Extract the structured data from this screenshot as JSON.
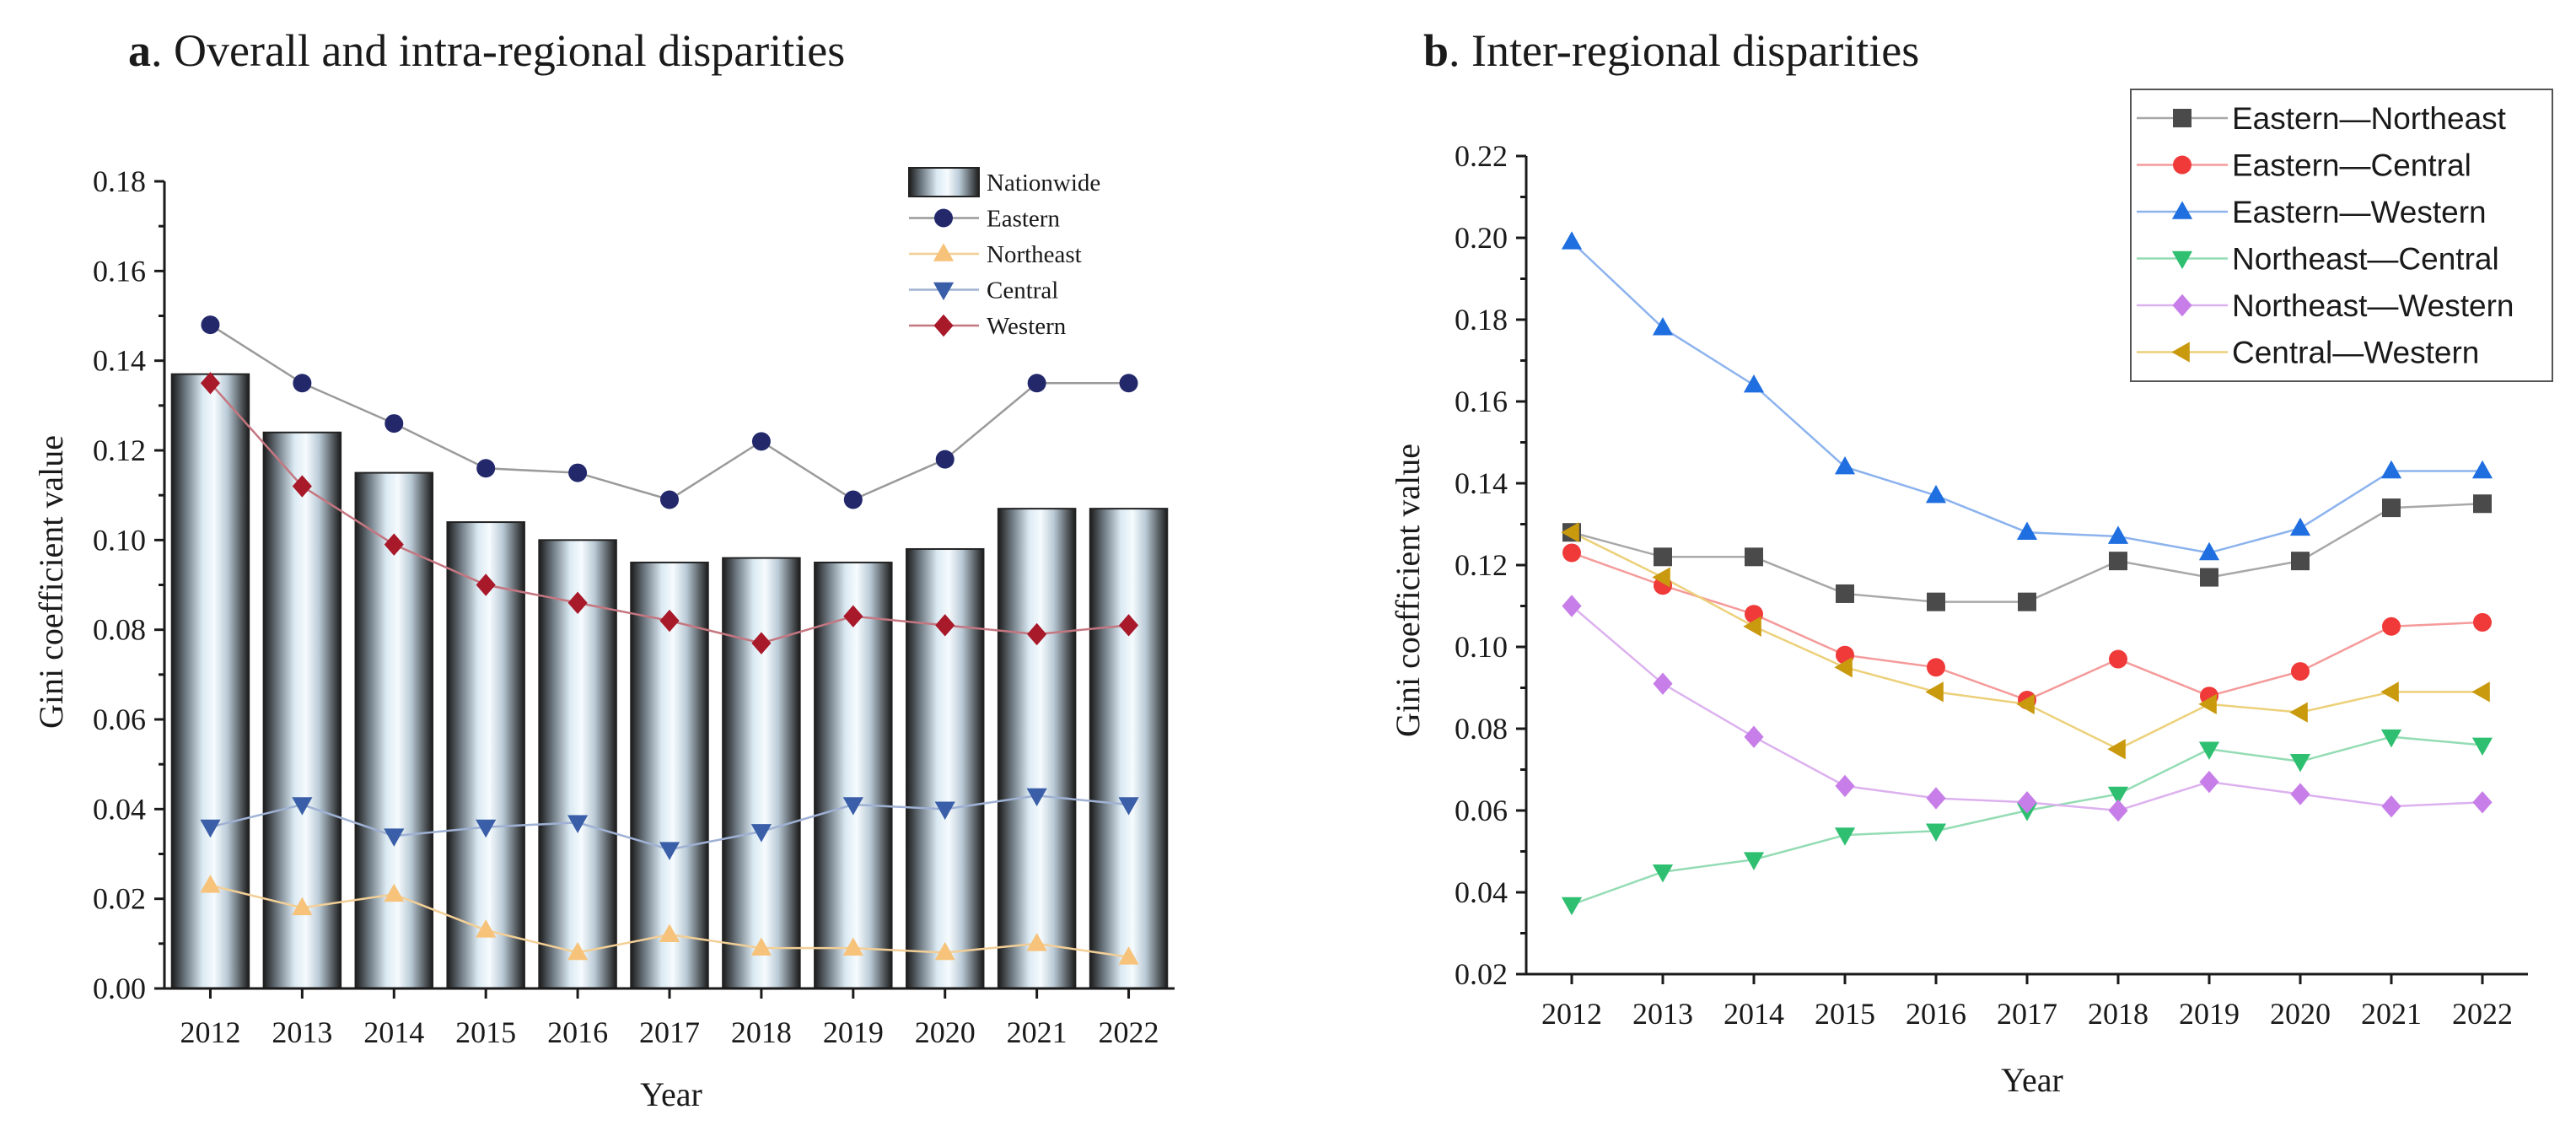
{
  "chart_data": [
    {
      "type": "bar+line",
      "panel": "a",
      "title": ". Overall and intra-regional disparities",
      "xlabel": "Year",
      "ylabel": "Gini coefficient value",
      "ylim": [
        0,
        0.18
      ],
      "yticks": [
        "0.00",
        "0.02",
        "0.04",
        "0.06",
        "0.08",
        "0.10",
        "0.12",
        "0.14",
        "0.16",
        "0.18"
      ],
      "categories": [
        "2012",
        "2013",
        "2014",
        "2015",
        "2016",
        "2017",
        "2018",
        "2019",
        "2020",
        "2021",
        "2022"
      ],
      "bar_series": {
        "name": "Nationwide",
        "values": [
          0.137,
          0.124,
          0.115,
          0.104,
          0.1,
          0.095,
          0.096,
          0.095,
          0.098,
          0.107,
          0.107
        ]
      },
      "series": [
        {
          "name": "Eastern",
          "marker": "circle",
          "color": "#23286b",
          "line_color": "#9a9a9a",
          "values": [
            0.148,
            0.135,
            0.126,
            0.116,
            0.115,
            0.109,
            0.122,
            0.109,
            0.118,
            0.135,
            0.135
          ]
        },
        {
          "name": "Northeast",
          "marker": "triangle-up",
          "color": "#f7c27a",
          "line_color": "#f3cf96",
          "values": [
            0.023,
            0.018,
            0.021,
            0.013,
            0.008,
            0.012,
            0.009,
            0.009,
            0.008,
            0.01,
            0.007
          ]
        },
        {
          "name": "Central",
          "marker": "triangle-down",
          "color": "#3a5fa8",
          "line_color": "#9fb1d4",
          "values": [
            0.036,
            0.041,
            0.034,
            0.036,
            0.037,
            0.031,
            0.035,
            0.041,
            0.04,
            0.043,
            0.041
          ]
        },
        {
          "name": "Western",
          "marker": "diamond",
          "color": "#a8192a",
          "line_color": "#c57680",
          "values": [
            0.135,
            0.112,
            0.099,
            0.09,
            0.086,
            0.082,
            0.077,
            0.083,
            0.081,
            0.079,
            0.081
          ]
        }
      ],
      "legend_position": "top-right"
    },
    {
      "type": "line",
      "panel": "b",
      "title": ". Inter-regional disparities",
      "xlabel": "Year",
      "ylabel": "Gini coefficient value",
      "ylim": [
        0.02,
        0.22
      ],
      "yticks": [
        "0.02",
        "0.04",
        "0.06",
        "0.08",
        "0.10",
        "0.12",
        "0.14",
        "0.16",
        "0.18",
        "0.20",
        "0.22"
      ],
      "categories": [
        "2012",
        "2013",
        "2014",
        "2015",
        "2016",
        "2017",
        "2018",
        "2019",
        "2020",
        "2021",
        "2022"
      ],
      "series": [
        {
          "name": "Eastern—Northeast",
          "marker": "square",
          "color": "#4a4a4a",
          "line_color": "#a8a8a8",
          "values": [
            0.128,
            0.122,
            0.122,
            0.113,
            0.111,
            0.111,
            0.121,
            0.117,
            0.121,
            0.134,
            0.135
          ]
        },
        {
          "name": "Eastern—Central",
          "marker": "circle",
          "color": "#f03a3a",
          "line_color": "#f59a9a",
          "values": [
            0.123,
            0.115,
            0.108,
            0.098,
            0.095,
            0.087,
            0.097,
            0.088,
            0.094,
            0.105,
            0.106
          ]
        },
        {
          "name": "Eastern—Western",
          "marker": "triangle-up",
          "color": "#1f6fe0",
          "line_color": "#8cb3ee",
          "values": [
            0.199,
            0.178,
            0.164,
            0.144,
            0.137,
            0.128,
            0.127,
            0.123,
            0.129,
            0.143,
            0.143
          ]
        },
        {
          "name": "Northeast—Central",
          "marker": "triangle-down",
          "color": "#2fbf71",
          "line_color": "#94dcb4",
          "values": [
            0.037,
            0.045,
            0.048,
            0.054,
            0.055,
            0.06,
            0.064,
            0.075,
            0.072,
            0.078,
            0.076
          ]
        },
        {
          "name": "Northeast—Western",
          "marker": "diamond",
          "color": "#c77ee8",
          "line_color": "#dcb1ef",
          "values": [
            0.11,
            0.091,
            0.078,
            0.066,
            0.063,
            0.062,
            0.06,
            0.067,
            0.064,
            0.061,
            0.062
          ]
        },
        {
          "name": "Central—Western",
          "marker": "triangle-left",
          "color": "#c9990e",
          "line_color": "#ecd07a",
          "values": [
            0.128,
            0.117,
            0.105,
            0.095,
            0.089,
            0.086,
            0.075,
            0.086,
            0.084,
            0.089,
            0.089
          ]
        }
      ],
      "legend_position": "top-right"
    }
  ],
  "panel_letters": [
    "a",
    "b"
  ]
}
